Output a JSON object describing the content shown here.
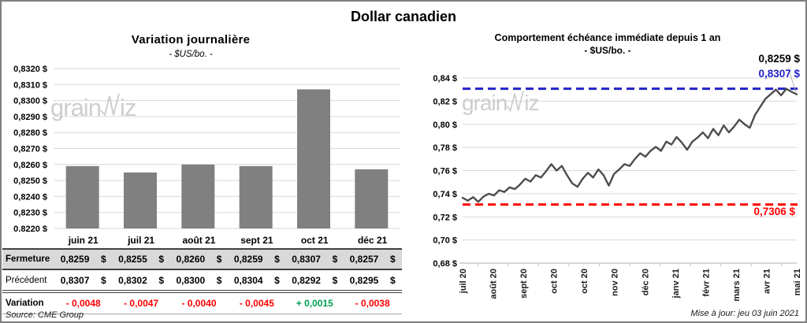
{
  "title": "Dollar canadien",
  "watermark": {
    "pre": "grain",
    "post": "iz"
  },
  "source_note": "Source: CME Group",
  "update_note": "Mise à jour: jeu 03 juin 2021",
  "colors": {
    "bar": "#808080",
    "line": "#4d4d4d",
    "grid": "#d9d9d9",
    "axis": "#bfbfbf",
    "accent_blue": "#2222c8",
    "accent_red": "#ff0000",
    "negative": "#ff0000",
    "positive": "#00a050",
    "shade": "#d9d9d9",
    "leader": "#b0b0b0"
  },
  "chart_data": [
    {
      "type": "bar",
      "title": "Variation  journalière",
      "subtitle": "- $US/bo. -",
      "categories": [
        "juin 21",
        "juil 21",
        "août 21",
        "sept 21",
        "oct 21",
        "déc 21"
      ],
      "values": [
        0.8259,
        0.8255,
        0.826,
        0.8259,
        0.8307,
        0.8257
      ],
      "ylim": [
        0.822,
        0.832
      ],
      "ytick_step": 0.001,
      "ytick_suffix": " $",
      "grid": true,
      "legend": false
    },
    {
      "type": "line",
      "title": "Comportement échéance immédiate depuis 1 an",
      "subtitle": "- $US/bo. -",
      "x_labels": [
        "juil 20",
        "août 20",
        "sept 20",
        "oct 20",
        "oct 20",
        "nov 20",
        "déc 20",
        "janv 21",
        "févr 21",
        "mars 21",
        "avr 21",
        "mai 21"
      ],
      "values": [
        0.7365,
        0.734,
        0.737,
        0.733,
        0.7375,
        0.74,
        0.7385,
        0.743,
        0.7415,
        0.7455,
        0.744,
        0.748,
        0.753,
        0.7505,
        0.756,
        0.754,
        0.7595,
        0.7655,
        0.76,
        0.764,
        0.756,
        0.749,
        0.746,
        0.753,
        0.758,
        0.754,
        0.761,
        0.756,
        0.747,
        0.757,
        0.761,
        0.7655,
        0.764,
        0.77,
        0.775,
        0.772,
        0.777,
        0.7805,
        0.777,
        0.785,
        0.7825,
        0.789,
        0.784,
        0.778,
        0.785,
        0.7885,
        0.793,
        0.788,
        0.796,
        0.7905,
        0.799,
        0.793,
        0.798,
        0.804,
        0.8,
        0.797,
        0.808,
        0.815,
        0.822,
        0.826,
        0.83,
        0.825,
        0.8307,
        0.828,
        0.8259
      ],
      "ylim": [
        0.68,
        0.84
      ],
      "ytick_step": 0.02,
      "ytick_suffix": " $",
      "grid": true,
      "legend": false,
      "annotations": {
        "last": {
          "label": "0,8259 $"
        },
        "high": {
          "label": "0,8307 $",
          "value": 0.8307
        },
        "low": {
          "label": "0,7306 $",
          "value": 0.7306
        }
      }
    }
  ],
  "table": {
    "columns": [
      "juin 21",
      "juil 21",
      "août 21",
      "sept 21",
      "oct 21",
      "déc 21"
    ],
    "rows": [
      {
        "label": "Fermeture",
        "kind": "ferm",
        "cells": [
          {
            "num": "0,8259",
            "cur": "$"
          },
          {
            "num": "0,8255",
            "cur": "$"
          },
          {
            "num": "0,8260",
            "cur": "$"
          },
          {
            "num": "0,8259",
            "cur": "$"
          },
          {
            "num": "0,8307",
            "cur": "$"
          },
          {
            "num": "0,8257",
            "cur": "$"
          }
        ]
      },
      {
        "label": "Précédent",
        "kind": "prec",
        "cells": [
          {
            "num": "0,8307",
            "cur": "$"
          },
          {
            "num": "0,8302",
            "cur": "$"
          },
          {
            "num": "0,8300",
            "cur": "$"
          },
          {
            "num": "0,8304",
            "cur": "$"
          },
          {
            "num": "0,8292",
            "cur": "$"
          },
          {
            "num": "0,8295",
            "cur": "$"
          }
        ]
      },
      {
        "label": "Variation",
        "kind": "var",
        "cells": [
          {
            "num": "- 0,0048",
            "sign": "neg"
          },
          {
            "num": "- 0,0047",
            "sign": "neg"
          },
          {
            "num": "- 0,0040",
            "sign": "neg"
          },
          {
            "num": "- 0,0045",
            "sign": "neg"
          },
          {
            "num": "+ 0,0015",
            "sign": "pos"
          },
          {
            "num": "- 0,0038",
            "sign": "neg"
          }
        ]
      }
    ]
  }
}
